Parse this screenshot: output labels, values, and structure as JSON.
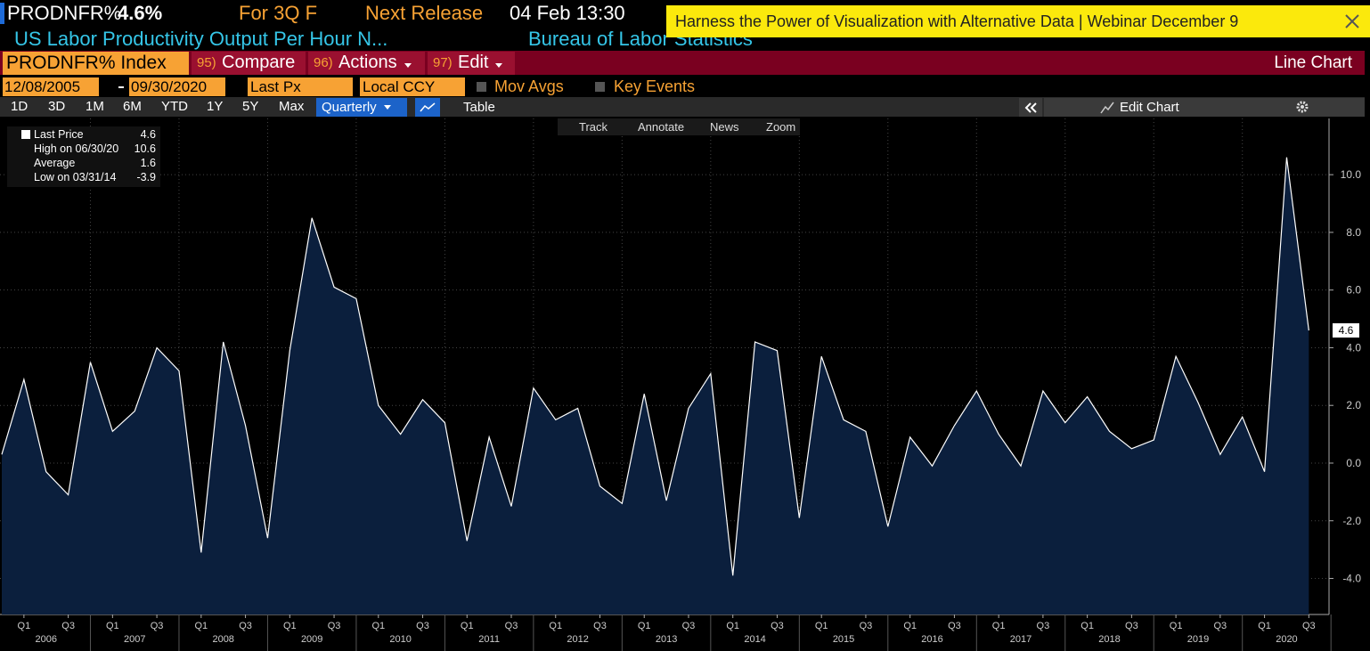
{
  "header": {
    "ticker": "PRODNFR%",
    "price": "4.6%",
    "period": "For 3Q F",
    "release_label": "Next Release",
    "release_time": "04 Feb 13:30",
    "description": "US Labor Productivity Output Per Hour N...",
    "source": "Bureau of Labor Statistics",
    "banner": "Harness the Power of Visualization with Alternative Data | Webinar December 9"
  },
  "command_bar": {
    "security": "PRODNFR% Index",
    "buttons": [
      {
        "number": "95)",
        "label": "Compare"
      },
      {
        "number": "96)",
        "label": "Actions"
      },
      {
        "number": "97)",
        "label": "Edit"
      }
    ],
    "view": "Line Chart"
  },
  "settings": {
    "start_date": "12/08/2005",
    "end_date": "09/30/2020",
    "field": "Last Px",
    "currency": "Local CCY",
    "options": [
      "Mov Avgs",
      "Key Events"
    ]
  },
  "toolbar": {
    "ranges": [
      "1D",
      "3D",
      "1M",
      "6M",
      "YTD",
      "1Y",
      "5Y",
      "Max"
    ],
    "frequency": "Quarterly",
    "table": "Table",
    "edit_chart": "Edit Chart",
    "chart_tools": [
      "Track",
      "Annotate",
      "News",
      "Zoom"
    ]
  },
  "chart_data": {
    "type": "line",
    "categories": [
      null,
      "Q1",
      null,
      "Q3",
      null,
      "Q1",
      null,
      "Q3",
      null,
      "Q1",
      null,
      "Q3",
      null,
      "Q1",
      null,
      "Q3",
      null,
      "Q1",
      null,
      "Q3",
      null,
      "Q1",
      null,
      "Q3",
      null,
      "Q1",
      null,
      "Q3",
      null,
      "Q1",
      null,
      "Q3",
      null,
      "Q1",
      null,
      "Q3",
      null,
      "Q1",
      null,
      "Q3",
      null,
      "Q1",
      null,
      "Q3",
      null,
      "Q1",
      null,
      "Q3",
      null,
      "Q1",
      null,
      "Q3",
      null,
      "Q1",
      null,
      "Q3",
      null,
      "Q1",
      null,
      "Q3"
    ],
    "year_labels": [
      "2006",
      "2007",
      "2008",
      "2009",
      "2010",
      "2011",
      "2012",
      "2013",
      "2014",
      "2015",
      "2016",
      "2017",
      "2018",
      "2019",
      "2020"
    ],
    "values": [
      0.3,
      2.9,
      -0.3,
      -1.1,
      3.5,
      1.1,
      1.8,
      4.0,
      3.2,
      -3.1,
      4.2,
      1.3,
      -2.6,
      3.9,
      8.5,
      6.1,
      5.7,
      2.0,
      1.0,
      2.2,
      1.4,
      -2.7,
      0.9,
      -1.5,
      2.6,
      1.5,
      1.9,
      -0.8,
      -1.4,
      2.4,
      -1.3,
      1.9,
      3.1,
      -3.9,
      4.2,
      3.9,
      -1.9,
      3.7,
      1.5,
      1.1,
      -2.2,
      0.9,
      -0.1,
      1.3,
      2.5,
      1.0,
      -0.1,
      2.5,
      1.4,
      2.3,
      1.1,
      0.5,
      0.8,
      3.7,
      2.1,
      0.3,
      1.6,
      -0.3,
      10.6,
      4.6
    ],
    "color": "#ffffff",
    "fill": "#0b1f3d",
    "ylim": [
      -5.25,
      11.95
    ],
    "yticks": [
      {
        "value": -4,
        "label": "-4.0"
      },
      {
        "value": -2,
        "label": "-2.0"
      },
      {
        "value": 0,
        "label": "0.0"
      },
      {
        "value": 2,
        "label": "2.0"
      },
      {
        "value": 4,
        "label": "4.0"
      },
      {
        "value": 6,
        "label": "6.0"
      },
      {
        "value": 8,
        "label": "8.0"
      },
      {
        "value": 10,
        "label": "10.0"
      }
    ],
    "grid": true,
    "stats": [
      {
        "label": "Last Price",
        "value": 4.6
      },
      {
        "label": "High on 06/30/20",
        "value": 10.6
      },
      {
        "label": "Average",
        "value": 1.6
      },
      {
        "label": "Low on 03/31/14",
        "value": -3.9
      }
    ]
  }
}
